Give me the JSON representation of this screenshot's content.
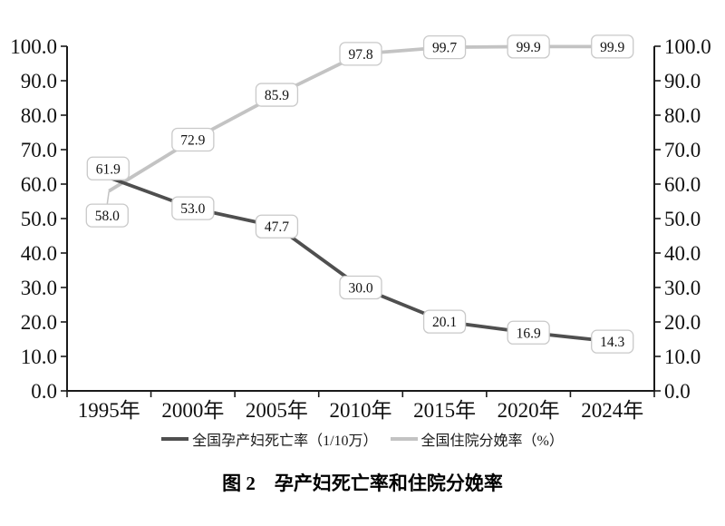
{
  "figure": {
    "caption": "图 2　孕产妇死亡率和住院分娩率"
  },
  "legend": {
    "items": [
      {
        "label": "全国孕产妇死亡率（1/10万）",
        "color": "#4f4f4f"
      },
      {
        "label": "全国住院分娩率（%）",
        "color": "#c3c3c3"
      }
    ]
  },
  "chart_data": {
    "type": "line",
    "title": "图 2　孕产妇死亡率和住院分娩率",
    "categories": [
      "1995年",
      "2000年",
      "2005年",
      "2010年",
      "2015年",
      "2020年",
      "2024年"
    ],
    "series": [
      {
        "name": "全国孕产妇死亡率（1/10万）",
        "axis": "left",
        "color": "#4f4f4f",
        "values": [
          61.9,
          53.0,
          47.7,
          30.0,
          20.1,
          16.9,
          14.3
        ]
      },
      {
        "name": "全国住院分娩率（%）",
        "axis": "right",
        "color": "#c3c3c3",
        "values": [
          58.0,
          72.9,
          85.9,
          97.8,
          99.7,
          99.9,
          99.9
        ]
      }
    ],
    "y_axis_left": {
      "min": 0,
      "max": 100,
      "step": 10,
      "tick_labels": [
        "100.0",
        "90.0",
        "80.0",
        "70.0",
        "60.0",
        "50.0",
        "40.0",
        "30.0",
        "20.0",
        "10.0",
        "0.0"
      ]
    },
    "y_axis_right": {
      "min": 0,
      "max": 100,
      "step": 10,
      "tick_labels": [
        "100.0",
        "90.0",
        "80.0",
        "70.0",
        "60.0",
        "50.0",
        "40.0",
        "30.0",
        "20.0",
        "10.0",
        "0.0"
      ]
    },
    "data_labels": true,
    "grid": false,
    "legend_position": "bottom",
    "layout_hints": {
      "label_box": {
        "w": 46,
        "h": 25,
        "rx": 6,
        "border": "#c9c9c9",
        "fill": "#ffffff"
      },
      "label_offsets": [
        [
          [
            -1,
            -10
          ],
          [
            0,
            0
          ],
          [
            0,
            0
          ],
          [
            0,
            0
          ],
          [
            0,
            0
          ],
          [
            0,
            0
          ],
          [
            0,
            0
          ]
        ],
        [
          [
            -2,
            27
          ],
          [
            0,
            0
          ],
          [
            0,
            0
          ],
          [
            0,
            0
          ],
          [
            0,
            0
          ],
          [
            0,
            0
          ],
          [
            0,
            0
          ]
        ]
      ],
      "leader_lines": [
        [
          1,
          0
        ]
      ],
      "axis_color": "#1a1a1a"
    }
  }
}
